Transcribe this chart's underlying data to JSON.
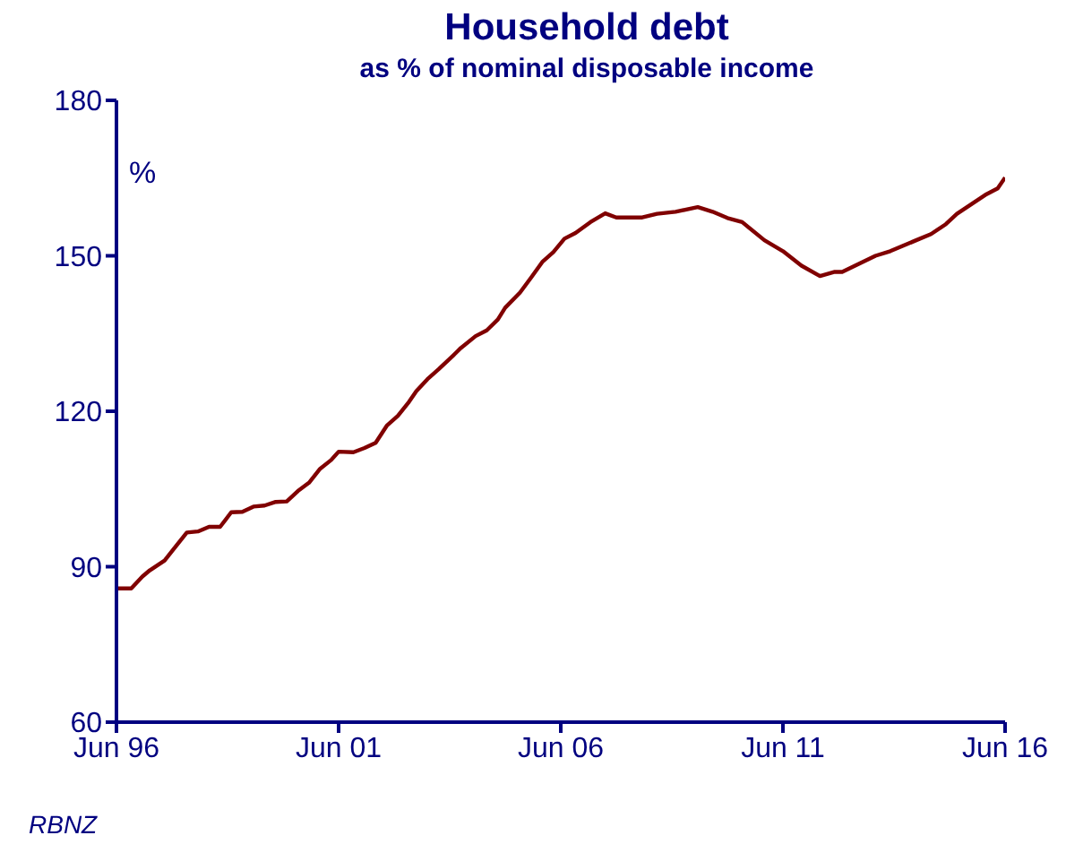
{
  "chart_data": {
    "type": "line",
    "title": "Household debt",
    "subtitle": "as % of nominal disposable income",
    "ylabel": "%",
    "annotations": [
      "RBNZ"
    ],
    "x": [
      "1996-06",
      "1996-10",
      "1997-01",
      "1997-03",
      "1997-07",
      "1997-09",
      "1998-01",
      "1998-04",
      "1998-07",
      "1998-10",
      "1999-01",
      "1999-04",
      "1999-07",
      "1999-10",
      "2000-01",
      "2000-04",
      "2000-07",
      "2000-10",
      "2001-01",
      "2001-04",
      "2001-06",
      "2001-10",
      "2002-01",
      "2002-04",
      "2002-07",
      "2002-10",
      "2003-01",
      "2003-03",
      "2003-06",
      "2003-09",
      "2004-01",
      "2004-03",
      "2004-07",
      "2004-10",
      "2005-01",
      "2005-03",
      "2005-07",
      "2005-10",
      "2006-01",
      "2006-04",
      "2006-07",
      "2006-10",
      "2007-02",
      "2007-06",
      "2007-09",
      "2008-04",
      "2008-08",
      "2009-01",
      "2009-07",
      "2009-11",
      "2010-03",
      "2010-07",
      "2011-01",
      "2011-06",
      "2011-11",
      "2012-04",
      "2012-08",
      "2012-10",
      "2013-03",
      "2013-07",
      "2013-11",
      "2014-06",
      "2014-10",
      "2015-02",
      "2015-05",
      "2015-09",
      "2016-01",
      "2016-04",
      "2016-06"
    ],
    "series": [
      {
        "color": "#800000",
        "values": [
          85.8,
          85.8,
          88.1,
          89.3,
          91.2,
          93.0,
          96.6,
          96.8,
          97.7,
          97.7,
          100.5,
          100.6,
          101.6,
          101.8,
          102.5,
          102.6,
          104.6,
          106.2,
          108.9,
          110.6,
          112.2,
          112.1,
          112.9,
          113.9,
          117.2,
          119.1,
          121.8,
          123.9,
          126.2,
          128.1,
          130.8,
          132.2,
          134.5,
          135.6,
          137.7,
          140.0,
          142.9,
          145.8,
          148.8,
          150.7,
          153.3,
          154.4,
          156.5,
          158.2,
          157.4,
          157.4,
          158.1,
          158.5,
          159.4,
          158.5,
          157.3,
          156.5,
          153.0,
          150.9,
          148.1,
          146.1,
          146.9,
          146.9,
          148.6,
          150.0,
          150.9,
          153.0,
          154.2,
          156.1,
          158.1,
          160.0,
          161.9,
          163.0,
          165.1
        ]
      }
    ],
    "xlim": [
      "1996-06",
      "2016-06"
    ],
    "xticks": [
      {
        "value": "1996-06",
        "label": "Jun 96"
      },
      {
        "value": "2001-06",
        "label": "Jun 01"
      },
      {
        "value": "2006-06",
        "label": "Jun 06"
      },
      {
        "value": "2011-06",
        "label": "Jun 11"
      },
      {
        "value": "2016-06",
        "label": "Jun 16"
      }
    ],
    "ylim": [
      60,
      180
    ],
    "yticks": [
      60,
      90,
      120,
      150,
      180
    ],
    "grid": false,
    "legend": false,
    "marker": "none",
    "line_style": "solid"
  }
}
